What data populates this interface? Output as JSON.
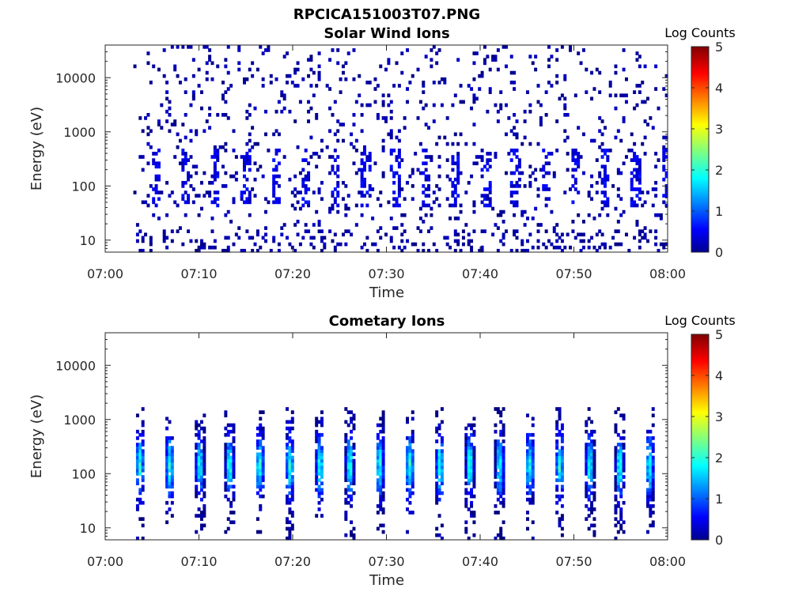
{
  "figure": {
    "suptitle": "RPCICA151003T07.PNG"
  },
  "chart_data": [
    {
      "type": "heatmap",
      "title": "Solar Wind Ions",
      "xlabel": "Time",
      "ylabel": "Energy (eV)",
      "x_tick_labels": [
        "07:00",
        "07:10",
        "07:20",
        "07:30",
        "07:40",
        "07:50",
        "08:00"
      ],
      "x_range": [
        "07:00",
        "08:00"
      ],
      "y_scale": "log",
      "y_tick_values": [
        10,
        100,
        1000,
        10000
      ],
      "y_tick_labels": [
        "10",
        "100",
        "1000",
        "10000"
      ],
      "y_range": [
        6,
        40000
      ],
      "colorbar": {
        "label": "Log Counts",
        "range": [
          0,
          5
        ],
        "tick_labels": [
          "0",
          "1",
          "2",
          "3",
          "4",
          "5"
        ],
        "colormap": "jet"
      },
      "data_start_time": "07:03",
      "scan_period_min": 3.2,
      "pattern": "sparse scattered low counts (log 0-1) across 10-20000 eV with denser vertical columns near 50-500 eV"
    },
    {
      "type": "heatmap",
      "title": "Cometary Ions",
      "xlabel": "Time",
      "ylabel": "Energy (eV)",
      "x_tick_labels": [
        "07:00",
        "07:10",
        "07:20",
        "07:30",
        "07:40",
        "07:50",
        "08:00"
      ],
      "x_range": [
        "07:00",
        "08:00"
      ],
      "y_scale": "log",
      "y_tick_values": [
        10,
        100,
        1000,
        10000
      ],
      "y_tick_labels": [
        "10",
        "100",
        "1000",
        "10000"
      ],
      "y_range": [
        6,
        40000
      ],
      "colorbar": {
        "label": "Log Counts",
        "range": [
          0,
          5
        ],
        "tick_labels": [
          "0",
          "1",
          "2",
          "3",
          "4",
          "5"
        ],
        "colormap": "jet"
      },
      "data_start_time": "07:03",
      "scan_period_min": 3.2,
      "pattern": "periodic bursts spanning ~20-1000 eV peaking near 100-200 eV at log counts ~2"
    }
  ]
}
